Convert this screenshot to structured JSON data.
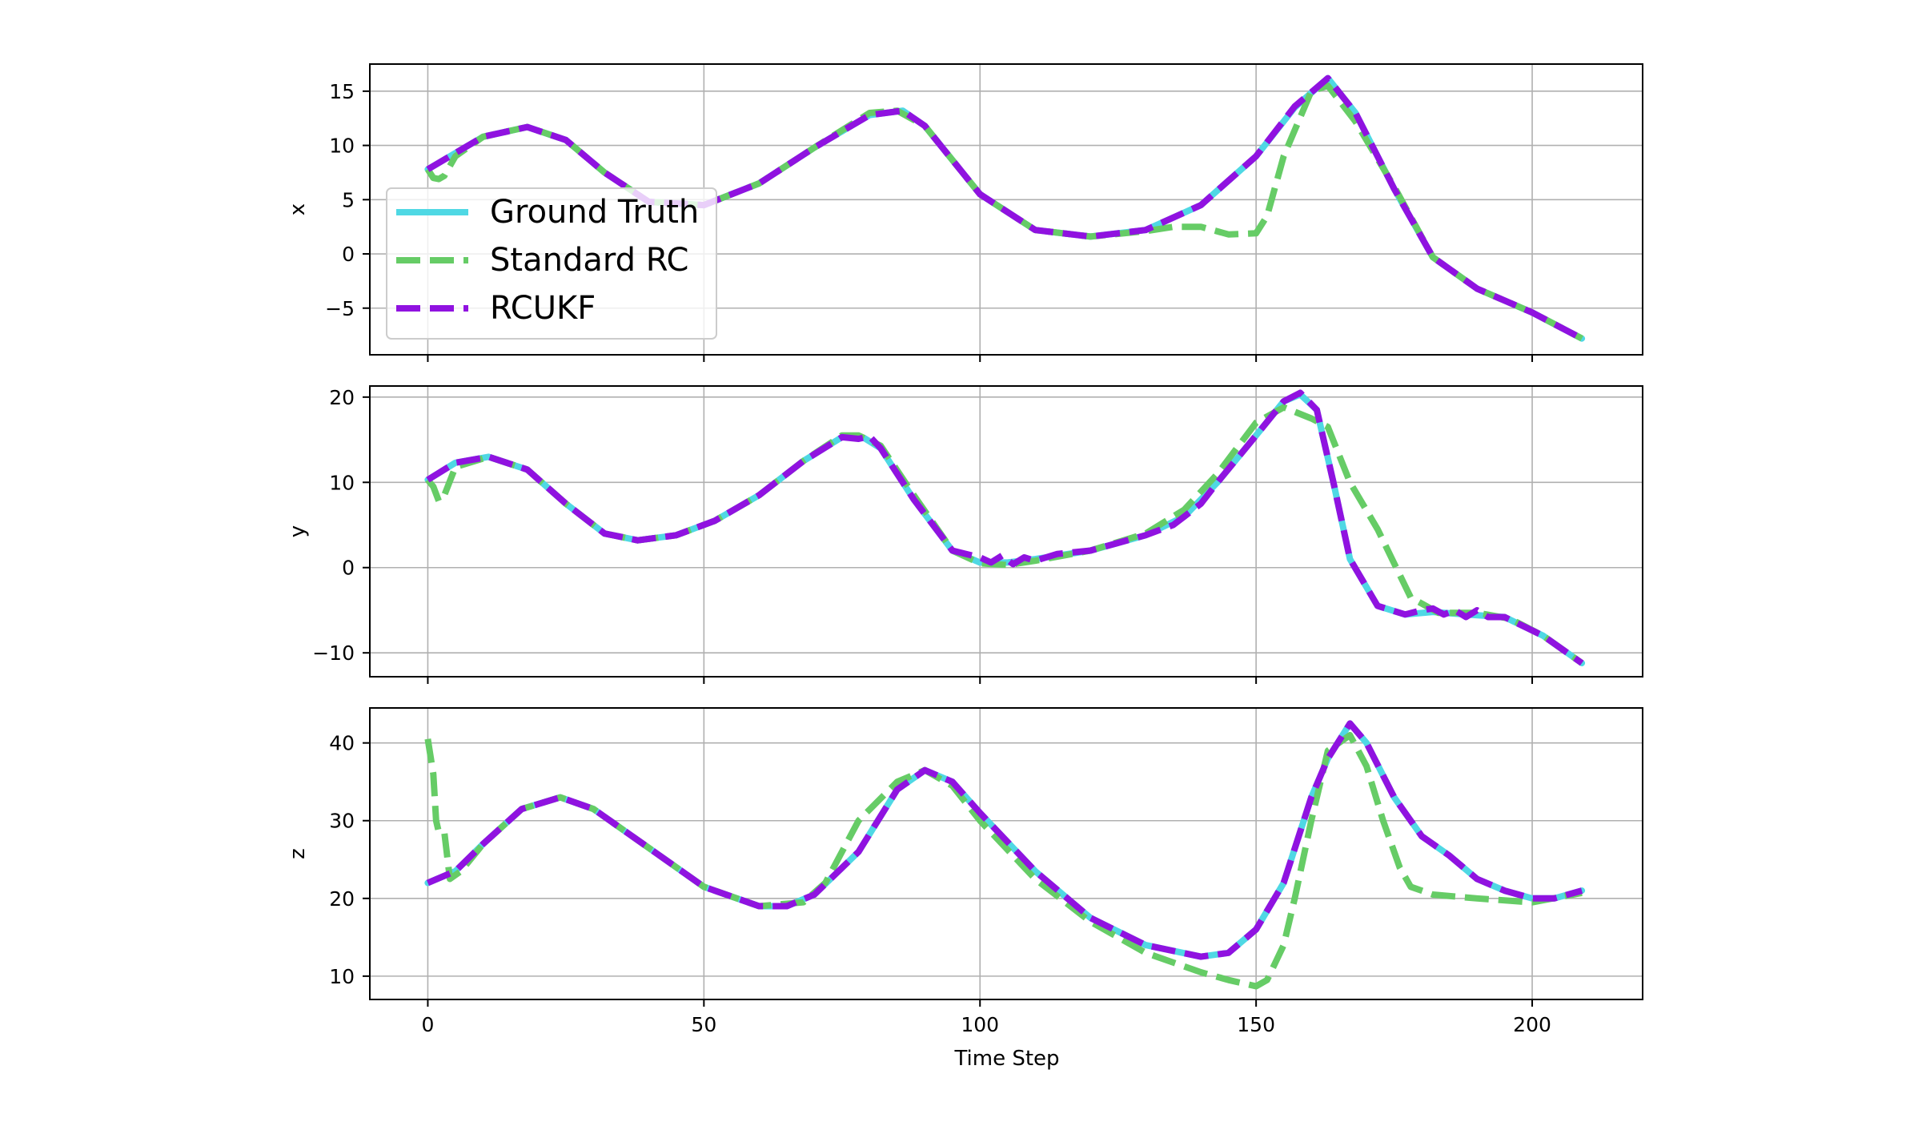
{
  "colors": {
    "ground_truth": "#4fd8e4",
    "standard_rc": "#66cc66",
    "rcukf": "#9012e0",
    "grid": "#b0b0b0",
    "legend_border": "#cccccc"
  },
  "legend": {
    "location": "upper-left of top panel",
    "items": [
      {
        "label": "Ground Truth",
        "style": "solid",
        "color_key": "ground_truth"
      },
      {
        "label": "Standard RC",
        "style": "dashed",
        "color_key": "standard_rc"
      },
      {
        "label": "RCUKF",
        "style": "dashed",
        "color_key": "rcukf"
      }
    ]
  },
  "chart_data": [
    {
      "type": "line",
      "ylabel": "x",
      "xlabel": "",
      "xlim": [
        -10.5,
        220
      ],
      "ylim": [
        -9.3,
        17.5
      ],
      "xticks": [
        0,
        50,
        100,
        150,
        200
      ],
      "xtick_labels_shown": false,
      "yticks": [
        -5,
        0,
        5,
        10,
        15
      ],
      "ytick_labels": [
        "−5",
        "0",
        "5",
        "10",
        "15"
      ],
      "grid": true,
      "series": [
        {
          "name": "Ground Truth",
          "x": [
            0,
            10,
            18,
            25,
            32,
            40,
            50,
            60,
            70,
            80,
            86,
            90,
            100,
            110,
            120,
            130,
            140,
            150,
            157,
            163,
            168,
            175,
            182,
            190,
            200,
            209
          ],
          "y": [
            7.8,
            10.8,
            11.7,
            10.5,
            7.5,
            4.8,
            4.5,
            6.5,
            9.8,
            12.8,
            13.2,
            11.8,
            5.5,
            2.2,
            1.6,
            2.2,
            4.5,
            9,
            13.5,
            16.2,
            13,
            6,
            -0.3,
            -3.2,
            -5.4,
            -7.8
          ]
        },
        {
          "name": "Standard RC",
          "x": [
            0,
            1,
            2,
            3,
            5,
            10,
            18,
            25,
            32,
            40,
            50,
            60,
            70,
            80,
            85,
            90,
            100,
            110,
            120,
            130,
            135,
            140,
            145,
            150,
            152,
            155,
            160,
            163,
            168,
            175,
            182,
            190,
            200,
            209
          ],
          "y": [
            7.8,
            7,
            6.9,
            7.2,
            9,
            10.8,
            11.7,
            10.5,
            7.5,
            4.8,
            4.5,
            6.5,
            9.8,
            13,
            13.2,
            11.8,
            5.5,
            2.2,
            1.6,
            2.1,
            2.5,
            2.5,
            1.8,
            1.9,
            3.5,
            9,
            15,
            15.5,
            12.2,
            6.2,
            -0.3,
            -3.2,
            -5.4,
            -7.8
          ]
        },
        {
          "name": "RCUKF",
          "x": [
            0,
            10,
            18,
            25,
            32,
            40,
            50,
            60,
            70,
            80,
            86,
            90,
            100,
            110,
            120,
            130,
            140,
            150,
            157,
            163,
            168,
            175,
            182,
            190,
            200,
            209
          ],
          "y": [
            7.8,
            10.8,
            11.7,
            10.5,
            7.5,
            4.8,
            4.5,
            6.5,
            9.8,
            12.8,
            13.2,
            11.8,
            5.5,
            2.2,
            1.6,
            2.2,
            4.5,
            9,
            13.6,
            16.2,
            13,
            6,
            -0.3,
            -3.2,
            -5.4,
            -7.8
          ]
        }
      ]
    },
    {
      "type": "line",
      "ylabel": "y",
      "xlabel": "",
      "xlim": [
        -10.5,
        220
      ],
      "ylim": [
        -12.8,
        21.3
      ],
      "xticks": [
        0,
        50,
        100,
        150,
        200
      ],
      "xtick_labels_shown": false,
      "yticks": [
        -10,
        0,
        10,
        20
      ],
      "ytick_labels": [
        "−10",
        "0",
        "10",
        "20"
      ],
      "grid": true,
      "series": [
        {
          "name": "Ground Truth",
          "x": [
            0,
            5,
            11,
            18,
            25,
            32,
            38,
            45,
            52,
            60,
            68,
            75,
            79,
            82,
            88,
            95,
            100,
            105,
            110,
            120,
            130,
            137,
            143,
            150,
            155,
            158,
            161,
            164,
            167,
            172,
            177,
            182,
            188,
            195,
            202,
            209
          ],
          "y": [
            10.3,
            12.3,
            13,
            11.5,
            7.5,
            4,
            3.2,
            3.8,
            5.5,
            8.5,
            12.5,
            15.3,
            15.2,
            14,
            8,
            2,
            0.6,
            0.6,
            1,
            2,
            3.8,
            6,
            10,
            15.5,
            19.5,
            20.3,
            18.5,
            10,
            1,
            -4.5,
            -5.5,
            -5.2,
            -5.5,
            -5.8,
            -8,
            -11.2
          ]
        },
        {
          "name": "Standard RC",
          "x": [
            0,
            1,
            2,
            3,
            5,
            11,
            18,
            25,
            32,
            38,
            45,
            52,
            60,
            68,
            75,
            78,
            82,
            88,
            95,
            100,
            105,
            110,
            120,
            130,
            137,
            143,
            150,
            155,
            160,
            163,
            167,
            172,
            178,
            183,
            190,
            196,
            202,
            209
          ],
          "y": [
            10.3,
            9.5,
            7.8,
            8.5,
            11.8,
            13,
            11.5,
            7.5,
            4,
            3.2,
            3.8,
            5.5,
            8.5,
            12.5,
            15.5,
            15.5,
            14.3,
            8.5,
            2,
            0.5,
            0.3,
            0.8,
            2,
            4,
            6.8,
            11,
            17,
            18.8,
            17.5,
            16.5,
            10,
            4.5,
            -3.5,
            -5.3,
            -5.3,
            -6,
            -8,
            -11.2
          ]
        },
        {
          "name": "RCUKF",
          "x": [
            0,
            5,
            11,
            18,
            25,
            32,
            38,
            45,
            52,
            60,
            68,
            75,
            78,
            80,
            82,
            88,
            95,
            100,
            102,
            104,
            106,
            108,
            110,
            114,
            120,
            130,
            135,
            137,
            140,
            143,
            150,
            155,
            158,
            161,
            164,
            167,
            172,
            177,
            180,
            182,
            184,
            186,
            188,
            190,
            192,
            195,
            202,
            209
          ],
          "y": [
            10.3,
            12.3,
            13,
            11.5,
            7.5,
            4,
            3.2,
            3.8,
            5.5,
            8.5,
            12.5,
            15.3,
            15.1,
            15.4,
            14,
            8,
            2,
            1.2,
            0.6,
            1.4,
            0.4,
            1.2,
            0.8,
            1.6,
            2,
            3.8,
            5,
            6,
            7.5,
            10,
            15.5,
            19.5,
            20.5,
            18.5,
            10,
            1,
            -4.5,
            -5.5,
            -5,
            -4.8,
            -5.5,
            -5,
            -5.8,
            -5,
            -5.8,
            -5.8,
            -8,
            -11.2
          ]
        }
      ]
    },
    {
      "type": "line",
      "ylabel": "z",
      "xlabel": "Time Step",
      "xlim": [
        -10.5,
        220
      ],
      "ylim": [
        7,
        44.5
      ],
      "xticks": [
        0,
        50,
        100,
        150,
        200
      ],
      "xtick_labels": [
        "0",
        "50",
        "100",
        "150",
        "200"
      ],
      "xtick_labels_shown": true,
      "yticks": [
        10,
        20,
        30,
        40
      ],
      "ytick_labels": [
        "10",
        "20",
        "30",
        "40"
      ],
      "grid": true,
      "series": [
        {
          "name": "Ground Truth",
          "x": [
            0,
            5,
            10,
            17,
            24,
            30,
            40,
            50,
            60,
            65,
            70,
            78,
            85,
            90,
            95,
            100,
            110,
            120,
            130,
            140,
            145,
            150,
            155,
            160,
            163,
            167,
            170,
            175,
            180,
            185,
            190,
            195,
            200,
            204,
            209
          ],
          "y": [
            22,
            23.5,
            27,
            31.5,
            33,
            31.5,
            26.5,
            21.5,
            19,
            19,
            20.5,
            26,
            34,
            36.5,
            35,
            31,
            23.5,
            17.5,
            14,
            12.5,
            13,
            16,
            22,
            33,
            38,
            42.5,
            40,
            33,
            28,
            25.5,
            22.5,
            21,
            20,
            20,
            21
          ]
        },
        {
          "name": "Standard RC",
          "x": [
            0,
            1,
            1.5,
            2,
            3,
            4,
            6,
            10,
            17,
            24,
            30,
            40,
            50,
            60,
            68,
            72,
            78,
            85,
            90,
            95,
            100,
            110,
            120,
            130,
            140,
            145,
            150,
            152,
            155,
            157,
            160,
            163,
            167,
            170,
            173,
            176,
            178,
            182,
            190,
            200,
            209
          ],
          "y": [
            40.5,
            36,
            30,
            28.5,
            28.5,
            22.5,
            23.5,
            27,
            31.5,
            33,
            31.5,
            26.5,
            21.5,
            19,
            19.5,
            22,
            30,
            35,
            36.5,
            34.5,
            30,
            22.5,
            17,
            13,
            10.5,
            9.5,
            8.7,
            9.5,
            14,
            20,
            30,
            39,
            41,
            37,
            30,
            24,
            21.5,
            20.5,
            20,
            19.5,
            20.7
          ]
        },
        {
          "name": "RCUKF",
          "x": [
            0,
            5,
            10,
            17,
            24,
            30,
            40,
            50,
            60,
            65,
            70,
            78,
            85,
            90,
            95,
            100,
            110,
            120,
            130,
            140,
            145,
            150,
            155,
            160,
            163,
            167,
            170,
            175,
            180,
            185,
            190,
            195,
            200,
            204,
            209
          ],
          "y": [
            22,
            23.5,
            27,
            31.5,
            33,
            31.5,
            26.5,
            21.5,
            19,
            19,
            20.5,
            26,
            34,
            36.5,
            35,
            31,
            23.5,
            17.5,
            14,
            12.5,
            13,
            16,
            22,
            33,
            38,
            42.5,
            40,
            33,
            28,
            25.5,
            22.5,
            21,
            20,
            20,
            21
          ]
        }
      ]
    }
  ]
}
